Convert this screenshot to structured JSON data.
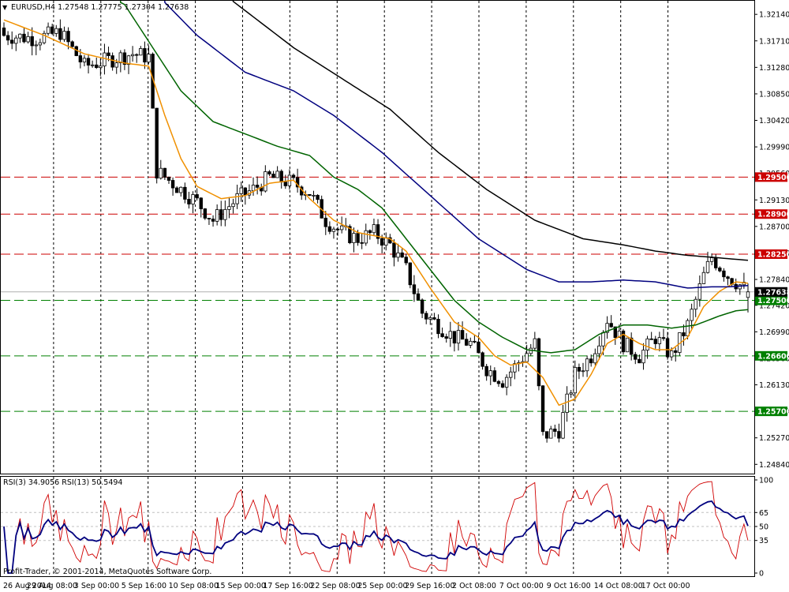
{
  "window": {
    "symbol_header": "EURUSD,H4  1.27548 1.27775 1.27304 1.27638",
    "rsi_header": "RSI(3) 34.9056  RSI(13) 50.5494",
    "copyright": "Profit-Trader, © 2001-2014, MetaQuotes Software Corp."
  },
  "chart_data": {
    "type": "candlestick",
    "symbol": "EURUSD",
    "timeframe": "H4",
    "ohlc_last": {
      "open": 1.27548,
      "high": 1.27775,
      "low": 1.27304,
      "close": 1.27638
    },
    "price_axis": {
      "range": [
        1.2469,
        1.3236
      ],
      "ticks": [
        "1.32140",
        "1.31710",
        "1.31280",
        "1.30850",
        "1.30420",
        "1.29990",
        "1.29560",
        "1.29130",
        "1.28700",
        "1.28270",
        "1.27840",
        "1.27420",
        "1.26990",
        "1.26560",
        "1.26130",
        "1.25700",
        "1.25270",
        "1.24840"
      ]
    },
    "time_axis": {
      "labels": [
        "26 Aug 2014",
        "29 Aug 08:00",
        "3 Sep 00:00",
        "5 Sep 16:00",
        "10 Sep 08:00",
        "15 Sep 00:00",
        "17 Sep 16:00",
        "22 Sep 08:00",
        "25 Sep 00:00",
        "29 Sep 16:00",
        "2 Oct 08:00",
        "7 Oct 00:00",
        "9 Oct 16:00",
        "14 Oct 08:00",
        "17 Oct 00:00"
      ]
    },
    "level_lines": [
      {
        "value": 1.295,
        "label": "1.29500",
        "color": "#cc0000"
      },
      {
        "value": 1.289,
        "label": "1.28900",
        "color": "#cc0000"
      },
      {
        "value": 1.2825,
        "label": "1.28250",
        "color": "#cc0000"
      },
      {
        "value": 1.275,
        "label": "1.27500",
        "color": "#008000"
      },
      {
        "value": 1.266,
        "label": "1.26600",
        "color": "#008000"
      },
      {
        "value": 1.257,
        "label": "1.25700",
        "color": "#008000"
      }
    ],
    "current_price": {
      "value": 1.27638,
      "label": "1.27638"
    },
    "candle_count": 186,
    "close_anchors": [
      [
        0,
        1.318
      ],
      [
        8,
        1.3175
      ],
      [
        14,
        1.3185
      ],
      [
        20,
        1.313
      ],
      [
        26,
        1.314
      ],
      [
        32,
        1.315
      ],
      [
        36,
        1.3145
      ],
      [
        38,
        1.296
      ],
      [
        42,
        1.294
      ],
      [
        48,
        1.291
      ],
      [
        52,
        1.288
      ],
      [
        58,
        1.2915
      ],
      [
        62,
        1.293
      ],
      [
        66,
        1.295
      ],
      [
        72,
        1.294
      ],
      [
        76,
        1.2925
      ],
      [
        80,
        1.288
      ],
      [
        84,
        1.286
      ],
      [
        88,
        1.285
      ],
      [
        92,
        1.286
      ],
      [
        96,
        1.284
      ],
      [
        100,
        1.28
      ],
      [
        104,
        1.273
      ],
      [
        108,
        1.271
      ],
      [
        112,
        1.269
      ],
      [
        116,
        1.268
      ],
      [
        120,
        1.264
      ],
      [
        124,
        1.262
      ],
      [
        128,
        1.265
      ],
      [
        132,
        1.268
      ],
      [
        134,
        1.253
      ],
      [
        138,
        1.254
      ],
      [
        142,
        1.263
      ],
      [
        146,
        1.266
      ],
      [
        150,
        1.272
      ],
      [
        154,
        1.268
      ],
      [
        158,
        1.266
      ],
      [
        162,
        1.269
      ],
      [
        166,
        1.266
      ],
      [
        170,
        1.271
      ],
      [
        174,
        1.279
      ],
      [
        176,
        1.282
      ],
      [
        180,
        1.279
      ],
      [
        184,
        1.277
      ],
      [
        185,
        1.27638
      ]
    ],
    "moving_averages": [
      {
        "color": "#f09000",
        "points": [
          [
            0,
            1.3205
          ],
          [
            10,
            1.318
          ],
          [
            20,
            1.315
          ],
          [
            30,
            1.3135
          ],
          [
            36,
            1.313
          ],
          [
            40,
            1.305
          ],
          [
            44,
            1.298
          ],
          [
            48,
            1.2935
          ],
          [
            54,
            1.2915
          ],
          [
            60,
            1.292
          ],
          [
            66,
            1.294
          ],
          [
            72,
            1.2945
          ],
          [
            76,
            1.2915
          ],
          [
            82,
            1.288
          ],
          [
            88,
            1.286
          ],
          [
            96,
            1.285
          ],
          [
            100,
            1.283
          ],
          [
            106,
            1.277
          ],
          [
            112,
            1.2715
          ],
          [
            118,
            1.269
          ],
          [
            122,
            1.266
          ],
          [
            126,
            1.2645
          ],
          [
            130,
            1.265
          ],
          [
            134,
            1.2625
          ],
          [
            138,
            1.258
          ],
          [
            142,
            1.259
          ],
          [
            146,
            1.263
          ],
          [
            150,
            1.268
          ],
          [
            154,
            1.2695
          ],
          [
            158,
            1.268
          ],
          [
            162,
            1.267
          ],
          [
            166,
            1.267
          ],
          [
            170,
            1.269
          ],
          [
            174,
            1.274
          ],
          [
            178,
            1.2765
          ],
          [
            182,
            1.278
          ],
          [
            185,
            1.2778
          ]
        ]
      },
      {
        "color": "#006400",
        "points": [
          [
            0,
            1.326
          ],
          [
            12,
            1.327
          ],
          [
            24,
            1.325
          ],
          [
            30,
            1.323
          ],
          [
            36,
            1.317
          ],
          [
            44,
            1.309
          ],
          [
            52,
            1.304
          ],
          [
            60,
            1.302
          ],
          [
            68,
            1.3
          ],
          [
            76,
            1.2985
          ],
          [
            82,
            1.295
          ],
          [
            88,
            1.293
          ],
          [
            94,
            1.29
          ],
          [
            100,
            1.285
          ],
          [
            106,
            1.28
          ],
          [
            112,
            1.275
          ],
          [
            118,
            1.2715
          ],
          [
            124,
            1.269
          ],
          [
            130,
            1.267
          ],
          [
            136,
            1.2665
          ],
          [
            142,
            1.267
          ],
          [
            148,
            1.2695
          ],
          [
            154,
            1.271
          ],
          [
            160,
            1.271
          ],
          [
            166,
            1.2705
          ],
          [
            172,
            1.271
          ],
          [
            178,
            1.2725
          ],
          [
            182,
            1.2733
          ],
          [
            185,
            1.2735
          ]
        ]
      },
      {
        "color": "#00007f",
        "points": [
          [
            0,
            1.333
          ],
          [
            20,
            1.333
          ],
          [
            36,
            1.326
          ],
          [
            48,
            1.318
          ],
          [
            60,
            1.312
          ],
          [
            72,
            1.309
          ],
          [
            82,
            1.305
          ],
          [
            94,
            1.299
          ],
          [
            106,
            1.292
          ],
          [
            118,
            1.285
          ],
          [
            130,
            1.28
          ],
          [
            138,
            1.278
          ],
          [
            146,
            1.278
          ],
          [
            154,
            1.2783
          ],
          [
            162,
            1.278
          ],
          [
            170,
            1.277
          ],
          [
            176,
            1.2772
          ],
          [
            180,
            1.2772
          ],
          [
            185,
            1.2774
          ]
        ]
      },
      {
        "color": "#000000",
        "points": [
          [
            0,
            1.342
          ],
          [
            30,
            1.342
          ],
          [
            48,
            1.328
          ],
          [
            60,
            1.322
          ],
          [
            72,
            1.316
          ],
          [
            84,
            1.311
          ],
          [
            96,
            1.306
          ],
          [
            108,
            1.299
          ],
          [
            120,
            1.293
          ],
          [
            132,
            1.288
          ],
          [
            144,
            1.285
          ],
          [
            154,
            1.284
          ],
          [
            162,
            1.283
          ],
          [
            170,
            1.2823
          ],
          [
            176,
            1.282
          ],
          [
            185,
            1.2815
          ]
        ]
      }
    ],
    "rsi": {
      "levels": [
        100,
        65,
        50,
        35,
        0
      ],
      "rsi3_last": 34.9056,
      "rsi13_last": 50.5494,
      "rsi3_color": "#d00000",
      "rsi13_color": "#00007f"
    }
  }
}
